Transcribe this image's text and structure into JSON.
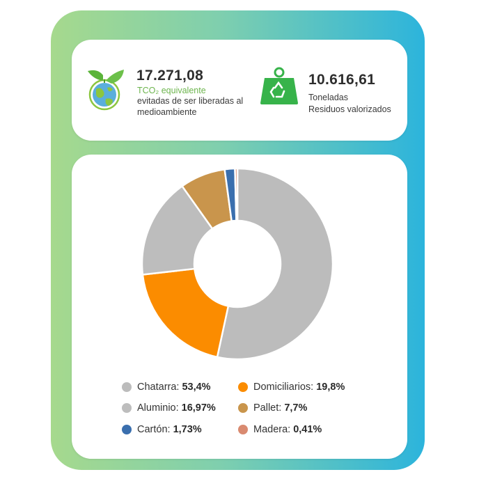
{
  "stats": {
    "co2": {
      "value": "17.271,08",
      "unit": "TCO₂ equivalente",
      "line2": "evitadas de ser liberadas al",
      "line3": "medioambiente",
      "icon": "earth-leaves-icon"
    },
    "waste": {
      "value": "10.616,61",
      "line1": "Toneladas",
      "line2": "Residuos valorizados",
      "icon": "weight-recycle-icon"
    }
  },
  "chart_data": {
    "type": "pie",
    "title": "",
    "categories": [
      "Chatarra",
      "Domiciliarios",
      "Aluminio",
      "Pallet",
      "Cartón",
      "Madera"
    ],
    "values": [
      53.4,
      19.8,
      16.97,
      7.7,
      1.73,
      0.41
    ],
    "labels": [
      "53,4%",
      "19,8%",
      "16,97%",
      "7,7%",
      "1,73%",
      "0,41%"
    ],
    "colors": [
      "#bcbcbc",
      "#fb8c00",
      "#bdbdbd",
      "#c9954c",
      "#3a6fae",
      "#d98a70"
    ],
    "donut": true,
    "legend_position": "bottom"
  },
  "legend": [
    {
      "label": "Chatarra:",
      "value": "53,4%",
      "color": "#bcbcbc"
    },
    {
      "label": "Domiciliarios:",
      "value": "19,8%",
      "color": "#fb8c00"
    },
    {
      "label": "Aluminio:",
      "value": "16,97%",
      "color": "#bdbdbd"
    },
    {
      "label": "Pallet:",
      "value": "7,7%",
      "color": "#c9954c"
    },
    {
      "label": "Cartón:",
      "value": "1,73%",
      "color": "#3a6fae"
    },
    {
      "label": "Madera:",
      "value": "0,41%",
      "color": "#d98a70"
    }
  ]
}
